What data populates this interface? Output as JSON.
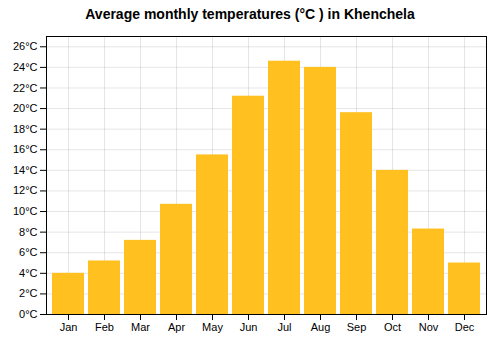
{
  "chart_data": {
    "type": "bar",
    "title": "Average monthly temperatures (°C ) in Khenchela",
    "categories": [
      "Jan",
      "Feb",
      "Mar",
      "Apr",
      "May",
      "Jun",
      "Jul",
      "Aug",
      "Sep",
      "Oct",
      "Nov",
      "Dec"
    ],
    "values": [
      4.0,
      5.2,
      7.2,
      10.7,
      15.5,
      21.2,
      24.6,
      24.0,
      19.6,
      14.0,
      8.3,
      5.0
    ],
    "color": "#FFC020",
    "ylim": [
      0,
      27
    ],
    "yticks": [
      {
        "value": 0,
        "label": "0°C"
      },
      {
        "value": 2,
        "label": "2°C"
      },
      {
        "value": 4,
        "label": "4°C"
      },
      {
        "value": 6,
        "label": "6°C"
      },
      {
        "value": 8,
        "label": "8°C"
      },
      {
        "value": 10,
        "label": "10°C"
      },
      {
        "value": 12,
        "label": "12°C"
      },
      {
        "value": 14,
        "label": "14°C"
      },
      {
        "value": 16,
        "label": "16°C"
      },
      {
        "value": 18,
        "label": "18°C"
      },
      {
        "value": 20,
        "label": "20°C"
      },
      {
        "value": 22,
        "label": "22°C"
      },
      {
        "value": 24,
        "label": "24°C"
      },
      {
        "value": 26,
        "label": "26°C"
      }
    ],
    "grid": true
  }
}
